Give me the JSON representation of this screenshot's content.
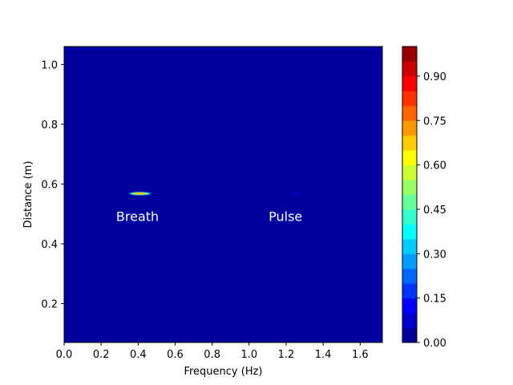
{
  "chart_data": {
    "type": "heatmap",
    "title": "",
    "xlabel": "Frequency (Hz)",
    "ylabel": "Distance (m)",
    "xlim": [
      0.0,
      1.72
    ],
    "ylim": [
      0.07,
      1.06
    ],
    "x_ticks": [
      "0.0",
      "0.2",
      "0.4",
      "0.6",
      "0.8",
      "1.0",
      "1.2",
      "1.4",
      "1.6"
    ],
    "x_tick_values": [
      0.0,
      0.2,
      0.4,
      0.6,
      0.8,
      1.0,
      1.2,
      1.4,
      1.6
    ],
    "y_ticks": [
      "0.2",
      "0.4",
      "0.6",
      "0.8",
      "1.0"
    ],
    "y_tick_values": [
      0.2,
      0.4,
      0.6,
      0.8,
      1.0
    ],
    "background_value": 0.0,
    "peaks": [
      {
        "x": 0.41,
        "y": 0.568,
        "value": 1.0
      },
      {
        "x": 1.25,
        "y": 0.568,
        "value": 0.1
      }
    ],
    "annotations": [
      {
        "text": "Breath",
        "x": 0.44,
        "y": 0.49
      },
      {
        "text": "Pulse",
        "x": 1.24,
        "y": 0.49
      }
    ],
    "colorbar": {
      "colormap": "jet",
      "range": [
        0.0,
        1.0
      ],
      "levels": 20,
      "ticks": [
        "0.00",
        "0.15",
        "0.30",
        "0.45",
        "0.60",
        "0.75",
        "0.90"
      ],
      "tick_values": [
        0.0,
        0.15,
        0.3,
        0.45,
        0.6,
        0.75,
        0.9
      ]
    },
    "grid": false
  }
}
